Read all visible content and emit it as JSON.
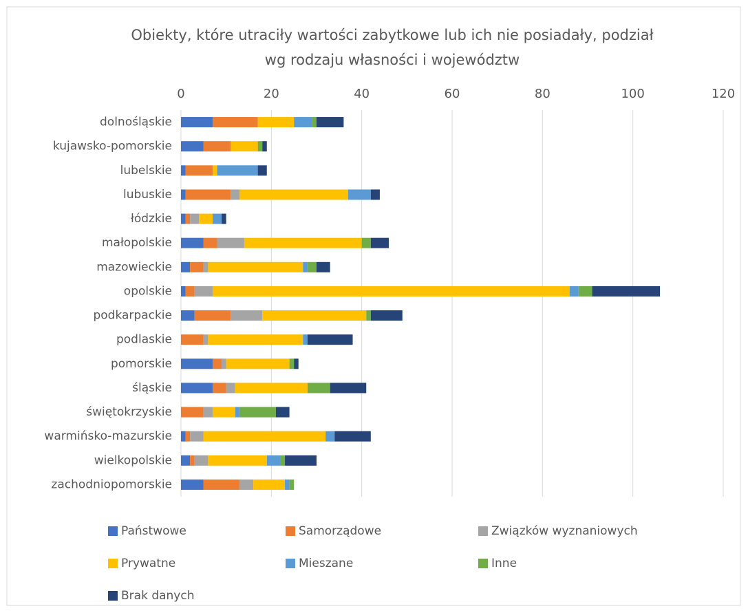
{
  "chart_data": {
    "type": "stacked-bar-horizontal",
    "title": [
      "Obiekty, które utraciły wartości zabytkowe lub ich nie posiadały, podział",
      "wg rodzaju własności i województw"
    ],
    "categories": [
      "dolnośląskie",
      "kujawsko-pomorskie",
      "lubelskie",
      "lubuskie",
      "łódzkie",
      "małopolskie",
      "mazowieckie",
      "opolskie",
      "podkarpackie",
      "podlaskie",
      "pomorskie",
      "śląskie",
      "świętokrzyskie",
      "warmińsko-mazurskie",
      "wielkopolskie",
      "zachodniopomorskie"
    ],
    "series": [
      {
        "name": "Państwowe",
        "color": "#4472c4",
        "values": [
          7,
          5,
          1,
          1,
          1,
          5,
          2,
          1,
          3,
          0,
          7,
          7,
          0,
          1,
          2,
          5
        ]
      },
      {
        "name": "Samorządowe",
        "color": "#ed7d31",
        "values": [
          10,
          6,
          6,
          10,
          1,
          3,
          3,
          2,
          8,
          5,
          2,
          3,
          5,
          1,
          1,
          8
        ]
      },
      {
        "name": "Związków wyznaniowych",
        "color": "#a5a5a5",
        "values": [
          0,
          0,
          0,
          2,
          2,
          6,
          1,
          4,
          7,
          1,
          1,
          2,
          2,
          3,
          3,
          3
        ]
      },
      {
        "name": "Prywatne",
        "color": "#ffc000",
        "values": [
          8,
          6,
          1,
          24,
          3,
          26,
          21,
          79,
          23,
          21,
          14,
          16,
          5,
          27,
          13,
          7
        ]
      },
      {
        "name": "Mieszane",
        "color": "#5b9bd5",
        "values": [
          4,
          0,
          9,
          5,
          2,
          0,
          1,
          2,
          0,
          1,
          0,
          0,
          1,
          2,
          3,
          1
        ]
      },
      {
        "name": "Inne",
        "color": "#70ad47",
        "values": [
          1,
          1,
          0,
          0,
          0,
          2,
          2,
          3,
          1,
          0,
          1,
          5,
          8,
          0,
          1,
          1
        ]
      },
      {
        "name": "Brak danych",
        "color": "#264478",
        "values": [
          6,
          1,
          2,
          2,
          1,
          4,
          3,
          15,
          7,
          10,
          1,
          8,
          3,
          8,
          7,
          0
        ]
      }
    ],
    "xlim": [
      0,
      120
    ],
    "xticks": [
      0,
      20,
      40,
      60,
      80,
      100,
      120
    ],
    "grid": true,
    "legend": "bottom"
  }
}
